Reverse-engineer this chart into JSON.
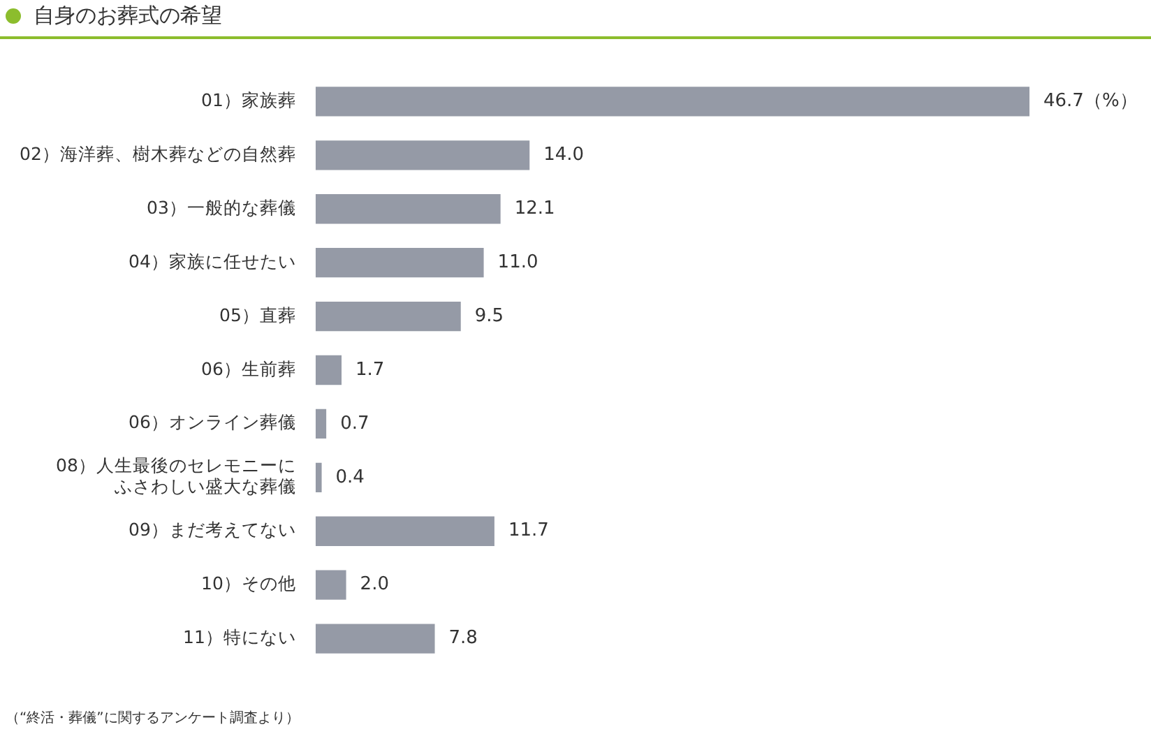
{
  "chart_data": {
    "type": "bar",
    "orientation": "horizontal",
    "title": "自身のお葬式の希望",
    "categories": [
      "01）家族葬",
      "02）海洋葬、樹木葬などの自然葬",
      "03）一般的な葬儀",
      "04）家族に任せたい",
      "05）直葬",
      "06）生前葬",
      "06）オンライン葬儀",
      "08）人生最後のセレモニーにふさわしい盛大な葬儀",
      "09）まだ考えてない",
      "10）その他",
      "11）特にない"
    ],
    "values": [
      46.7,
      14.0,
      12.1,
      11.0,
      9.5,
      1.7,
      0.7,
      0.4,
      11.7,
      2.0,
      7.8
    ],
    "value_labels": [
      "46.7（%）",
      "14.0",
      "12.1",
      "11.0",
      "9.5",
      "1.7",
      "0.7",
      "0.4",
      "11.7",
      "2.0",
      "7.8"
    ],
    "color": "#959aa6",
    "grid": false,
    "legend": false,
    "annotations": [
      "（“終活・葬儀”に関するアンケート調査より）"
    ]
  }
}
